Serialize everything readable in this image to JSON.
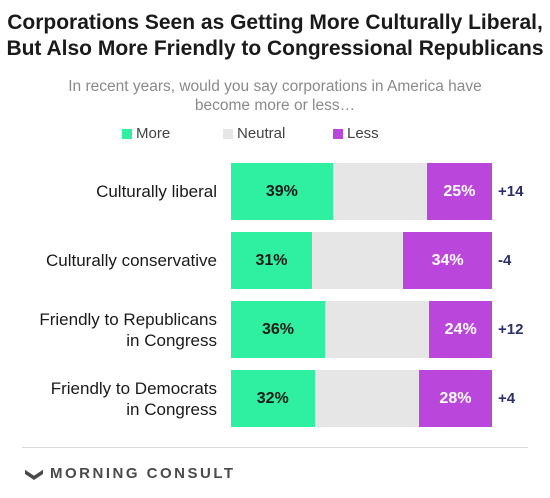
{
  "colors": {
    "more": "#2ef0a0",
    "neutral": "#e6e6e6",
    "less": "#bb46dc",
    "net": "#2b2f6b"
  },
  "footer": {
    "brand": "MORNING CONSULT",
    "logo_icon": "morning-consult-logo-icon"
  },
  "chart_data": {
    "type": "bar",
    "stacked": true,
    "orientation": "horizontal",
    "title": "Corporations Seen as Getting More Culturally Liberal, But Also More Friendly to Congressional Republicans",
    "subtitle": "In recent years, would you say corporations in America have become more or less…",
    "legend_position": "top",
    "categories": [
      [
        "Culturally liberal"
      ],
      [
        "Culturally conservative"
      ],
      [
        "Friendly to Republicans",
        "in Congress"
      ],
      [
        "Friendly to Democrats",
        "in Congress"
      ]
    ],
    "series": [
      {
        "name": "More",
        "values": [
          39,
          31,
          36,
          32
        ],
        "labels": [
          "39%",
          "31%",
          "36%",
          "32%"
        ]
      },
      {
        "name": "Neutral",
        "values": [
          36,
          35,
          40,
          40
        ],
        "labels": [
          "",
          "",
          "",
          ""
        ]
      },
      {
        "name": "Less",
        "values": [
          25,
          34,
          24,
          28
        ],
        "labels": [
          "25%",
          "34%",
          "24%",
          "28%"
        ]
      }
    ],
    "net": [
      "+14",
      "-4",
      "+12",
      "+4"
    ],
    "xlim": [
      0,
      100
    ],
    "grid": false
  }
}
